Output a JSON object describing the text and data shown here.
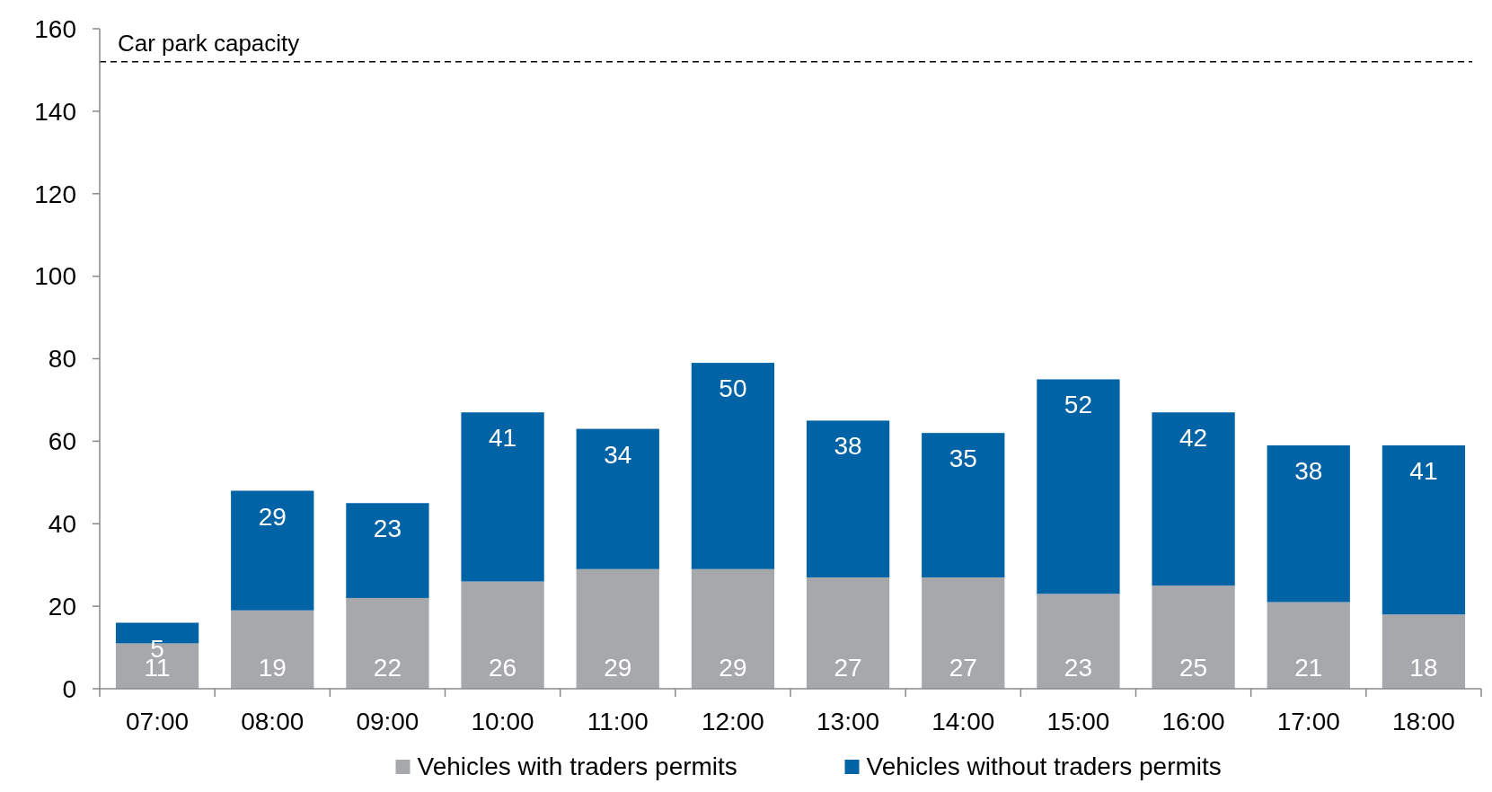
{
  "chart_data": {
    "type": "bar",
    "stacked": true,
    "categories": [
      "07:00",
      "08:00",
      "09:00",
      "10:00",
      "11:00",
      "12:00",
      "13:00",
      "14:00",
      "15:00",
      "16:00",
      "17:00",
      "18:00"
    ],
    "series": [
      {
        "name": "Vehicles with traders permits",
        "color": "#a7a8ab",
        "values": [
          11,
          19,
          22,
          26,
          29,
          29,
          27,
          27,
          23,
          25,
          21,
          18
        ]
      },
      {
        "name": "Vehicles without traders permits",
        "color": "#0063a6",
        "values": [
          5,
          29,
          23,
          41,
          34,
          50,
          38,
          35,
          52,
          42,
          38,
          41
        ]
      }
    ],
    "ylim": [
      0,
      160
    ],
    "yticks": [
      0,
      20,
      40,
      60,
      80,
      100,
      120,
      140,
      160
    ],
    "ref_lines": [
      {
        "axis": "y",
        "value": 152,
        "label": "Car park capacity",
        "line_style": "dashed",
        "color": "#000000"
      }
    ],
    "data_labels": true,
    "grid": false,
    "legend": "bottom"
  }
}
